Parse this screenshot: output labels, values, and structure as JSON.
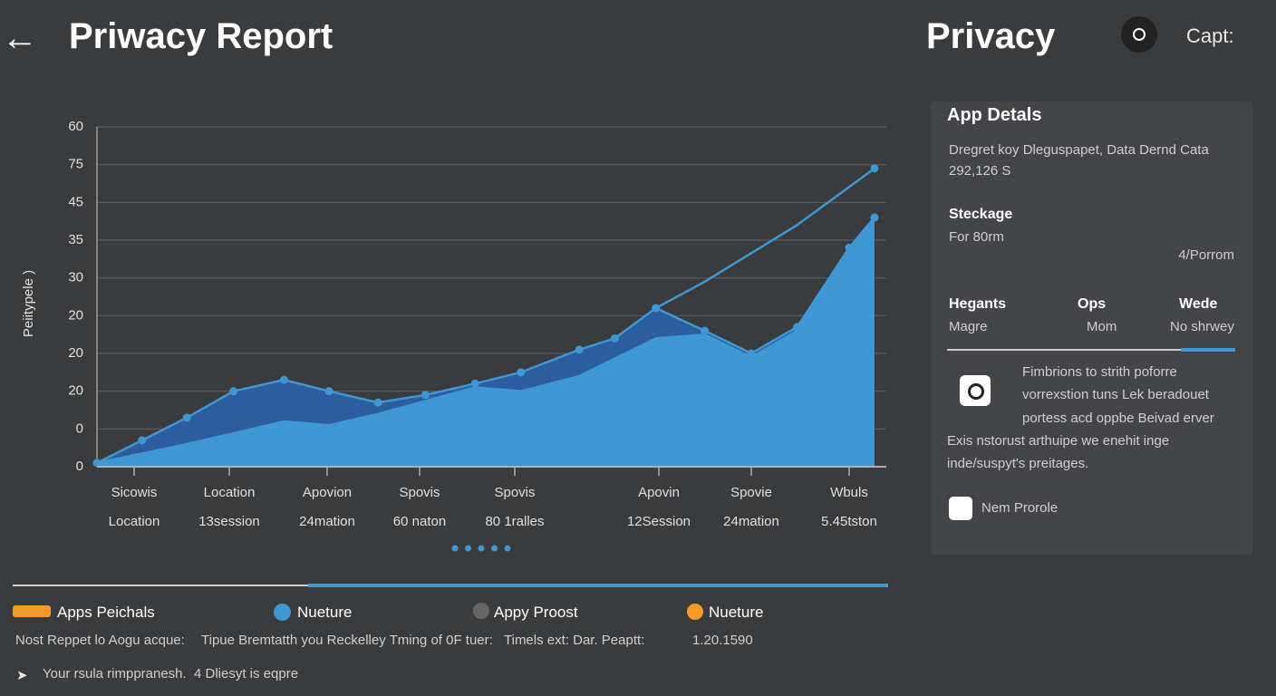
{
  "header": {
    "title": "Priwacy Report",
    "right_title": "Privacy",
    "right_label": "Capt:"
  },
  "chart_data": {
    "type": "area",
    "y_label": "Peiitypele )",
    "categories": [
      "Sicowis",
      "Location",
      "Apovion",
      "Spovis",
      "Spovis",
      "Apovin",
      "Spovie",
      "Wbuls"
    ],
    "sublabels": [
      "Location",
      "13session",
      "24mation",
      "60 naton",
      "80 1ralles",
      "12Session",
      "24mation",
      "5.45tston"
    ],
    "xlim": [
      0,
      100
    ],
    "ylim": [
      0,
      9
    ],
    "yticks": [
      {
        "value": 0,
        "label": "0"
      },
      {
        "value": 1,
        "label": "0"
      },
      {
        "value": 2,
        "label": "20"
      },
      {
        "value": 3,
        "label": "20"
      },
      {
        "value": 4,
        "label": "20"
      },
      {
        "value": 5,
        "label": "30"
      },
      {
        "value": 6,
        "label": "35"
      },
      {
        "value": 7,
        "label": "45"
      },
      {
        "value": 8,
        "label": "75"
      },
      {
        "value": 9,
        "label": "60"
      }
    ],
    "grid": true,
    "series": [
      {
        "kind": "area",
        "markers": true,
        "color": "#2c5d9e",
        "line_color": "#3f97d3",
        "x": [
          0,
          5.7,
          11.4,
          17.3,
          23.7,
          29.4,
          35.6,
          41.6,
          47.9,
          53.7,
          61.1,
          65.6,
          70.8,
          77.0,
          82.9,
          88.7,
          95.3,
          98.5
        ],
        "values": [
          0.1,
          0.7,
          1.3,
          2.0,
          2.3,
          2.0,
          1.7,
          1.9,
          2.2,
          2.5,
          3.1,
          3.4,
          4.2,
          3.6,
          3.0,
          3.7,
          5.8,
          6.6
        ]
      },
      {
        "kind": "area",
        "markers": false,
        "color": "#3f97d3",
        "line_color": "#3f97d3",
        "x": [
          0,
          11.4,
          23.7,
          29.4,
          35.6,
          47.9,
          53.7,
          61.1,
          70.8,
          77.0,
          82.9,
          88.7,
          95.3,
          98.5
        ],
        "values": [
          0.1,
          0.6,
          1.2,
          1.1,
          1.4,
          2.1,
          2.0,
          2.4,
          3.4,
          3.5,
          2.9,
          3.6,
          5.8,
          6.6
        ]
      },
      {
        "kind": "line",
        "markers": false,
        "end_marker": true,
        "color": "#3f97d3",
        "line_color": "#3f97d3",
        "x": [
          70.8,
          77.0,
          88.7,
          98.5
        ],
        "values": [
          4.2,
          4.9,
          6.4,
          7.9
        ]
      }
    ]
  },
  "panel": {
    "title": "App Detals",
    "line1": "Dregret koy Dleguspapet, Data Dernd Cata",
    "line2": "292,126 S",
    "section": "Steckage",
    "sub": "For 80rm",
    "sub_right": "4/Porrom",
    "columns": [
      {
        "head": "Hegants",
        "value": "Magre"
      },
      {
        "head": "Ops",
        "value": "Mom"
      },
      {
        "head": "Wede",
        "value": "No shrwey"
      }
    ],
    "desc": [
      "Fimbrions to strith poforre",
      "vorrexstion tuns Lek beradouet",
      "portess acd oppbe Beivad erver"
    ],
    "desc2": [
      "Exis nstorust arthuipe we enehit inge",
      "inde/suspyt's preitages."
    ],
    "action": "Nem Prorole"
  },
  "legend": [
    "Apps Peichals",
    "Nueture",
    "Appy Proost",
    "Nueture"
  ],
  "footer": {
    "notes": [
      "Nost Reppet lo Aogu acque:",
      "Tipue Bremtatth you Reckelley Tming of 0F tuer:",
      "Timels ext: Dar. Peaptt:",
      "1.20.1590"
    ],
    "bottom": [
      "Your rsula rimppranesh.",
      "4 Dliesyt is eqpre"
    ]
  }
}
